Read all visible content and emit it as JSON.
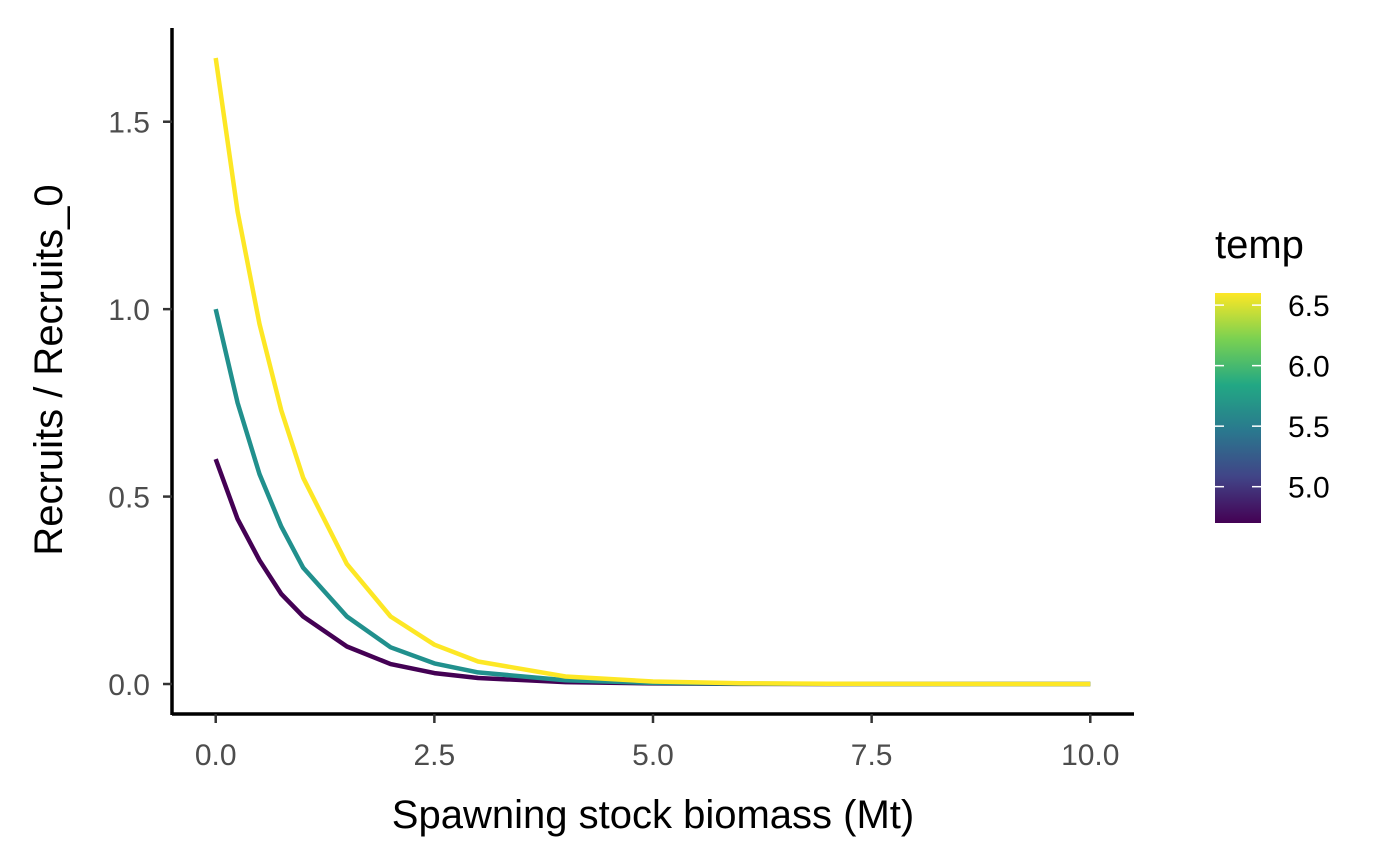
{
  "chart_data": {
    "type": "line",
    "xlabel": "Spawning stock biomass (Mt)",
    "ylabel": "Recruits / Recruits_0",
    "xlim": [
      -0.5,
      10.5
    ],
    "ylim": [
      -0.08,
      1.75
    ],
    "x_ticks": [
      0,
      2.5,
      5,
      7.5,
      10
    ],
    "x_tick_labels": [
      "0.0",
      "2.5",
      "5.0",
      "7.5",
      "10.0"
    ],
    "y_ticks": [
      0,
      0.5,
      1.0,
      1.5
    ],
    "y_tick_labels": [
      "0.0",
      "0.5",
      "1.0",
      "1.5"
    ],
    "grid": false,
    "legend": {
      "title": "temp",
      "type": "colorbar",
      "placement": "right",
      "range": [
        4.7,
        6.6
      ],
      "breaks": [
        5.0,
        5.5,
        6.0,
        6.5
      ],
      "labels": [
        "5.0",
        "5.5",
        "6.0",
        "6.5"
      ],
      "colors": [
        "#440154",
        "#414487",
        "#2a788e",
        "#22a884",
        "#7ad151",
        "#fde725"
      ]
    },
    "series": [
      {
        "temp": 4.7,
        "color": "#440154",
        "x": [
          0,
          0.25,
          0.5,
          0.75,
          1.0,
          1.5,
          2.0,
          2.5,
          3.0,
          4.0,
          5.0,
          6.0,
          7.0,
          8.0,
          9.0,
          10.0
        ],
        "y": [
          0.6,
          0.44,
          0.33,
          0.24,
          0.18,
          0.1,
          0.053,
          0.029,
          0.016,
          0.005,
          0.0015,
          0.0004,
          0.0001,
          0.0,
          0.0,
          0.0
        ]
      },
      {
        "temp": 5.65,
        "color": "#21908d",
        "x": [
          0,
          0.25,
          0.5,
          0.75,
          1.0,
          1.5,
          2.0,
          2.5,
          3.0,
          4.0,
          5.0,
          6.0,
          7.0,
          8.0,
          9.0,
          10.0
        ],
        "y": [
          1.0,
          0.75,
          0.56,
          0.42,
          0.31,
          0.18,
          0.098,
          0.055,
          0.031,
          0.0098,
          0.003,
          0.001,
          0.0003,
          0.0001,
          0.0,
          0.0
        ]
      },
      {
        "temp": 6.6,
        "color": "#fde725",
        "x": [
          0,
          0.25,
          0.5,
          0.75,
          1.0,
          1.5,
          2.0,
          2.5,
          3.0,
          4.0,
          5.0,
          6.0,
          7.0,
          8.0,
          9.0,
          10.0
        ],
        "y": [
          1.67,
          1.26,
          0.96,
          0.73,
          0.55,
          0.32,
          0.18,
          0.105,
          0.06,
          0.02,
          0.0066,
          0.0022,
          0.0007,
          0.0002,
          0.0001,
          0.0
        ]
      }
    ]
  }
}
